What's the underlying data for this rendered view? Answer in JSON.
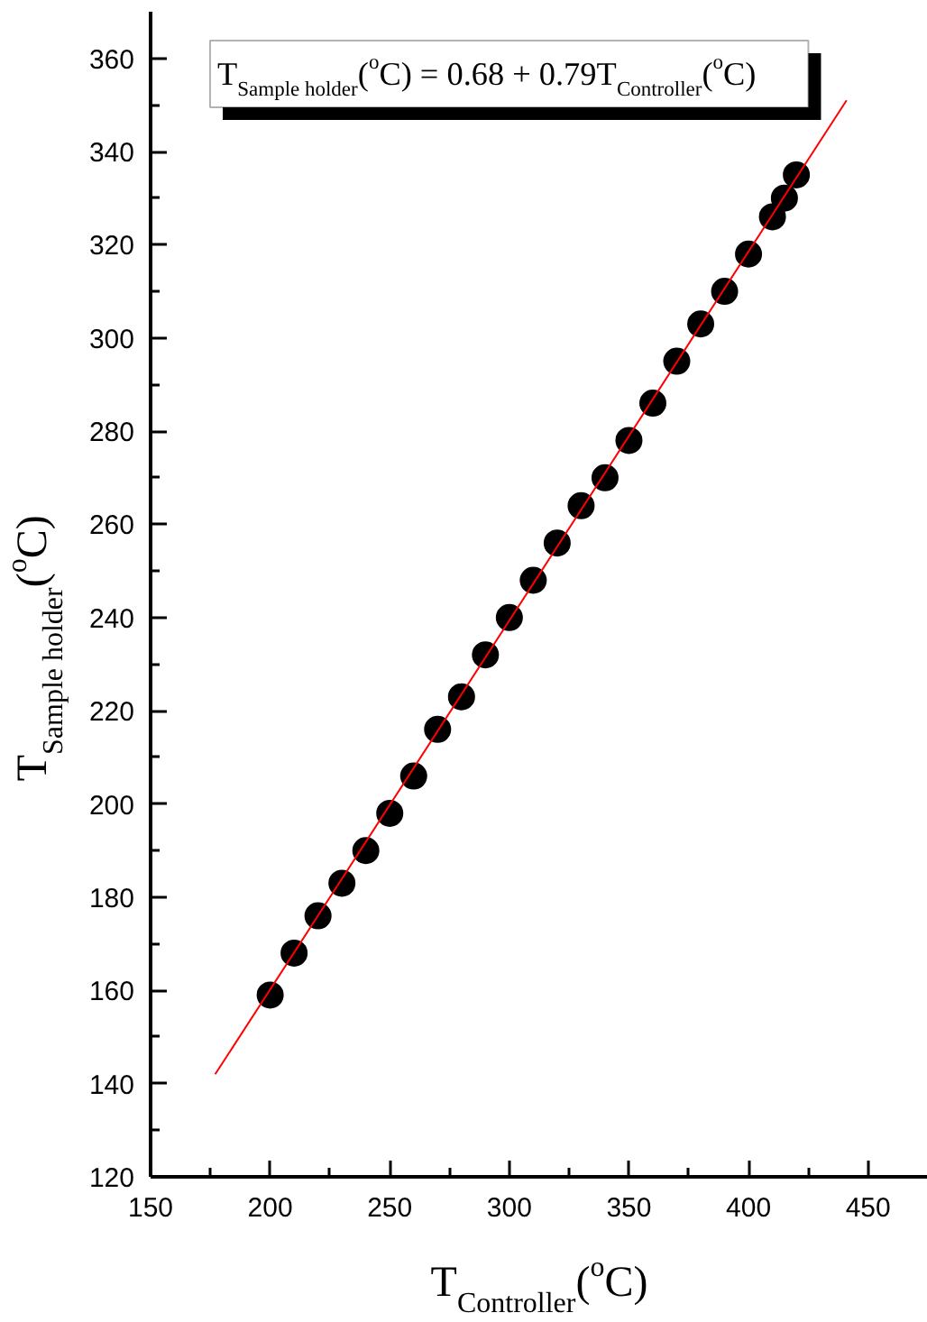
{
  "chart_data": {
    "type": "scatter",
    "xlabel": "T$_{Controller}$($^{o}$C)",
    "ylabel": "T$_{Sample holder}$($^{o}$C)",
    "annotations": [
      "T$_{Sample holder}$($^{o}$C) = 0.68 + 0.79T$_{Controller}$($^{o}$C)"
    ],
    "xlim": [
      150,
      475
    ],
    "ylim": [
      120,
      370
    ],
    "xticks": [
      150,
      {
        "value": 175,
        "label": null
      },
      200,
      {
        "value": 225,
        "label": null
      },
      250,
      {
        "value": 275,
        "label": null
      },
      300,
      {
        "value": 325,
        "label": null
      },
      350,
      {
        "value": 375,
        "label": null
      },
      400,
      {
        "value": 425,
        "label": null
      },
      450
    ],
    "yticks": [
      120,
      {
        "value": 130,
        "label": null
      },
      140,
      {
        "value": 150,
        "label": null
      },
      160,
      {
        "value": 170,
        "label": null
      },
      180,
      {
        "value": 190,
        "label": null
      },
      200,
      {
        "value": 210,
        "label": null
      },
      220,
      {
        "value": 230,
        "label": null
      },
      240,
      {
        "value": 250,
        "label": null
      },
      260,
      {
        "value": 270,
        "label": null
      },
      280,
      {
        "value": 290,
        "label": null
      },
      300,
      {
        "value": 310,
        "label": null
      },
      320,
      {
        "value": 330,
        "label": null
      },
      340,
      {
        "value": 350,
        "label": null
      },
      360
    ],
    "marker": "circle",
    "series": [
      {
        "color": "#000000",
        "x": [
          200,
          210,
          220,
          230,
          240,
          250,
          260,
          270,
          280,
          290,
          300,
          310,
          320,
          330,
          340,
          350,
          360,
          370,
          380,
          390,
          400,
          410,
          415,
          420
        ],
        "values": [
          159,
          168,
          176,
          183,
          190,
          198,
          206,
          216,
          223,
          232,
          240,
          248,
          256,
          264,
          270,
          278,
          286,
          295,
          303,
          310,
          318,
          326,
          330,
          335
        ]
      },
      {
        "type": "line",
        "color": "#ff0000",
        "marker": "none",
        "line_style": "solid",
        "x": [
          177,
          441
        ],
        "values": [
          142,
          351
        ]
      }
    ]
  }
}
